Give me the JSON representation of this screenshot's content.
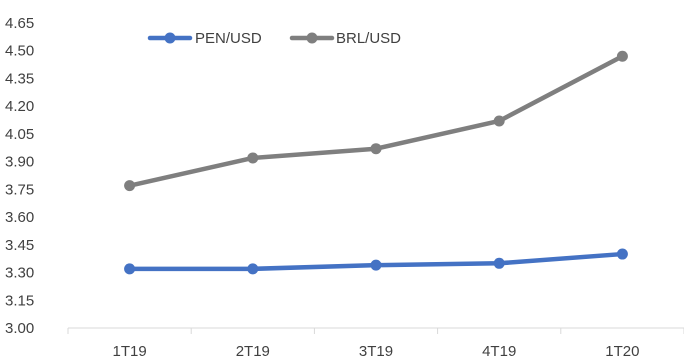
{
  "chart_data": {
    "type": "line",
    "title": "",
    "xlabel": "",
    "ylabel": "",
    "categories": [
      "1T19",
      "2T19",
      "3T19",
      "4T19",
      "1T20"
    ],
    "ylim": [
      3.0,
      4.65
    ],
    "yticks": [
      "3.00",
      "3.15",
      "3.30",
      "3.45",
      "3.60",
      "3.75",
      "3.90",
      "4.05",
      "4.20",
      "4.35",
      "4.50",
      "4.65"
    ],
    "grid": false,
    "legend_position": "top-left",
    "series": [
      {
        "name": "PEN/USD",
        "color": "#4472C4",
        "values": [
          3.32,
          3.32,
          3.34,
          3.35,
          3.4
        ]
      },
      {
        "name": "BRL/USD",
        "color": "#7F7F7F",
        "values": [
          3.77,
          3.92,
          3.97,
          4.12,
          4.47
        ]
      }
    ]
  }
}
